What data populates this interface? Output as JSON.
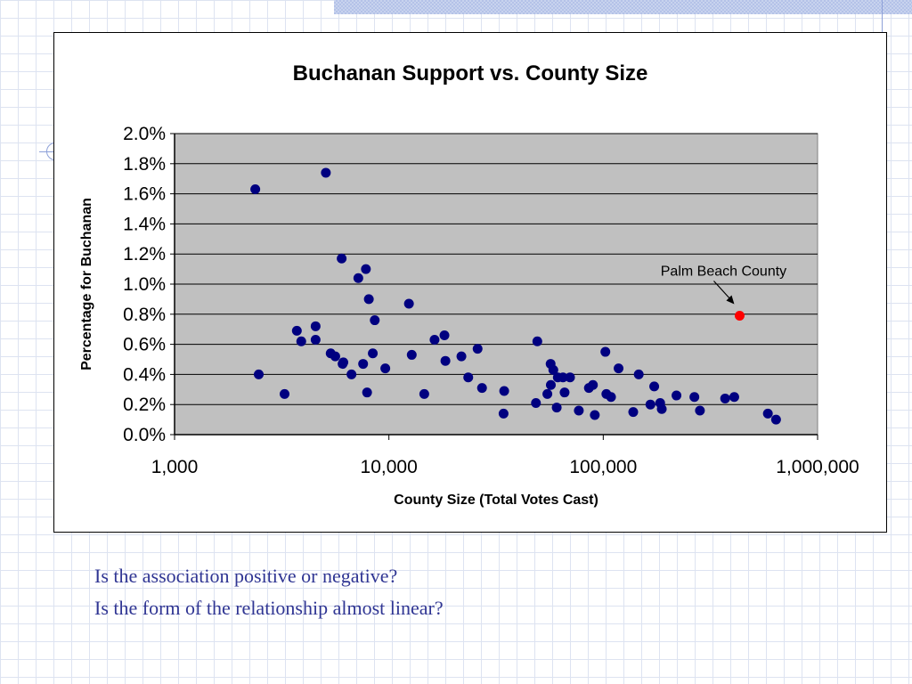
{
  "chart_data": {
    "type": "scatter",
    "title": "Buchanan Support vs. County Size",
    "xlabel": "County Size (Total Votes Cast)",
    "ylabel": "Percentage for Buchanan",
    "xscale": "log",
    "xlim": [
      1000,
      1000000
    ],
    "ylim": [
      0,
      2.0
    ],
    "x_ticks": [
      "1,000",
      "10,000",
      "100,000",
      "1,000,000"
    ],
    "y_ticks": [
      "0.0%",
      "0.2%",
      "0.4%",
      "0.6%",
      "0.8%",
      "1.0%",
      "1.2%",
      "1.4%",
      "1.6%",
      "1.8%",
      "2.0%"
    ],
    "grid": true,
    "plot_background": "#c0c0c0",
    "colors": {
      "points": "#000080",
      "highlight": "#ff0000"
    },
    "series": [
      {
        "points": [
          [
            2380,
            1.63
          ],
          [
            2470,
            0.4
          ],
          [
            3260,
            0.27
          ],
          [
            3720,
            0.69
          ],
          [
            3900,
            0.62
          ],
          [
            4550,
            0.72
          ],
          [
            4550,
            0.63
          ],
          [
            5080,
            1.74
          ],
          [
            5350,
            0.54
          ],
          [
            5620,
            0.52
          ],
          [
            6020,
            1.17
          ],
          [
            6080,
            0.47
          ],
          [
            6130,
            0.48
          ],
          [
            6690,
            0.4
          ],
          [
            7200,
            1.04
          ],
          [
            7580,
            0.47
          ],
          [
            7810,
            1.1
          ],
          [
            7910,
            0.28
          ],
          [
            8060,
            0.9
          ],
          [
            8410,
            0.54
          ],
          [
            8590,
            0.76
          ],
          [
            9620,
            0.44
          ],
          [
            12400,
            0.87
          ],
          [
            12780,
            0.53
          ],
          [
            14620,
            0.27
          ],
          [
            16330,
            0.63
          ],
          [
            18160,
            0.66
          ],
          [
            18350,
            0.49
          ],
          [
            21790,
            0.52
          ],
          [
            23450,
            0.38
          ],
          [
            25930,
            0.57
          ],
          [
            27190,
            0.31
          ],
          [
            34500,
            0.29
          ],
          [
            34270,
            0.14
          ],
          [
            48530,
            0.21
          ],
          [
            49250,
            0.62
          ],
          [
            54860,
            0.27
          ],
          [
            56820,
            0.47
          ],
          [
            56950,
            0.33
          ],
          [
            58490,
            0.43
          ],
          [
            60660,
            0.18
          ],
          [
            61380,
            0.38
          ],
          [
            64860,
            0.38
          ],
          [
            66020,
            0.28
          ],
          [
            69980,
            0.38
          ],
          [
            76920,
            0.16
          ],
          [
            85710,
            0.31
          ],
          [
            89500,
            0.33
          ],
          [
            91320,
            0.13
          ],
          [
            102300,
            0.55
          ],
          [
            103400,
            0.27
          ],
          [
            108700,
            0.25
          ],
          [
            117900,
            0.44
          ],
          [
            138000,
            0.15
          ],
          [
            146400,
            0.4
          ],
          [
            166000,
            0.2
          ],
          [
            172900,
            0.32
          ],
          [
            184300,
            0.21
          ],
          [
            187500,
            0.17
          ],
          [
            219600,
            0.26
          ],
          [
            266200,
            0.25
          ],
          [
            282500,
            0.16
          ],
          [
            370400,
            0.24
          ],
          [
            408500,
            0.25
          ],
          [
            586200,
            0.14
          ],
          [
            640000,
            0.1
          ]
        ]
      },
      {
        "name": "Palm Beach County",
        "points": [
          [
            432800,
            0.79
          ]
        ]
      }
    ],
    "annotations": [
      {
        "text": "Palm Beach County",
        "x": 432800,
        "y": 0.79
      }
    ]
  },
  "questions": [
    "Is the association positive or negative?",
    "Is the form of the relationship almost linear?"
  ]
}
